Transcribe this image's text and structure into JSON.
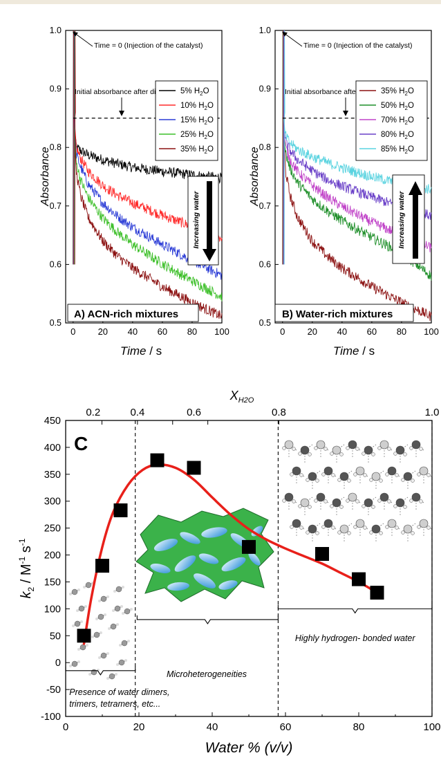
{
  "chart_data": [
    {
      "type": "line",
      "panel_label": "A) ACN-rich mixtures",
      "xlabel_italic": "Time",
      "xlabel_unit": " / s",
      "ylabel": "Absorbance",
      "xlim": [
        -5,
        100
      ],
      "ylim": [
        0.5,
        1.0
      ],
      "x_ticks": [
        0,
        20,
        40,
        60,
        80,
        100
      ],
      "x_tick_labels": [
        "0",
        "20",
        "40",
        "60",
        "80",
        "100"
      ],
      "y_ticks": [
        0.5,
        0.6,
        0.7,
        0.8,
        0.9,
        1.0
      ],
      "y_tick_labels": [
        "0.5",
        "0.6",
        "0.7",
        "0.8",
        "0.9",
        "1.0"
      ],
      "annotation_time0": "Time = 0 (Injection of the catalyst)",
      "annotation_dilution": "Initial absorbance after dilution",
      "dilution_level": 0.85,
      "arrow_text": "Increasing water",
      "arrow_direction": "down",
      "legend_position": "top-right",
      "series": [
        {
          "name": "5% H2O",
          "label_parts": [
            "5% H",
            "2",
            "O"
          ],
          "color": "#000000",
          "points": [
            [
              2,
              0.8
            ],
            [
              5,
              0.795
            ],
            [
              10,
              0.787
            ],
            [
              20,
              0.779
            ],
            [
              30,
              0.772
            ],
            [
              40,
              0.766
            ],
            [
              60,
              0.759
            ],
            [
              80,
              0.753
            ],
            [
              100,
              0.748
            ]
          ]
        },
        {
          "name": "10% H2O",
          "label_parts": [
            "10% H",
            "2",
            "O"
          ],
          "color": "#ff2a2a",
          "points": [
            [
              2,
              0.8
            ],
            [
              5,
              0.782
            ],
            [
              10,
              0.76
            ],
            [
              20,
              0.735
            ],
            [
              30,
              0.718
            ],
            [
              40,
              0.705
            ],
            [
              60,
              0.684
            ],
            [
              80,
              0.665
            ],
            [
              100,
              0.645
            ]
          ]
        },
        {
          "name": "15% H2O",
          "label_parts": [
            "15% H",
            "2",
            "O"
          ],
          "color": "#2a3bd6",
          "points": [
            [
              2,
              0.79
            ],
            [
              5,
              0.767
            ],
            [
              10,
              0.738
            ],
            [
              20,
              0.705
            ],
            [
              30,
              0.682
            ],
            [
              40,
              0.664
            ],
            [
              60,
              0.634
            ],
            [
              80,
              0.607
            ],
            [
              100,
              0.581
            ]
          ]
        },
        {
          "name": "25% H2O",
          "label_parts": [
            "25% H",
            "2",
            "O"
          ],
          "color": "#3cbf28",
          "points": [
            [
              2,
              0.775
            ],
            [
              5,
              0.745
            ],
            [
              10,
              0.715
            ],
            [
              20,
              0.679
            ],
            [
              30,
              0.655
            ],
            [
              40,
              0.634
            ],
            [
              60,
              0.601
            ],
            [
              80,
              0.572
            ],
            [
              100,
              0.545
            ]
          ]
        },
        {
          "name": "35% H2O",
          "label_parts": [
            "35% H",
            "2",
            "O"
          ],
          "color": "#8b1010",
          "points": [
            [
              2,
              0.76
            ],
            [
              5,
              0.718
            ],
            [
              10,
              0.681
            ],
            [
              20,
              0.64
            ],
            [
              30,
              0.614
            ],
            [
              40,
              0.594
            ],
            [
              60,
              0.562
            ],
            [
              80,
              0.535
            ],
            [
              100,
              0.511
            ]
          ]
        }
      ]
    },
    {
      "type": "line",
      "panel_label": "B) Water-rich mixtures",
      "xlabel_italic": "Time",
      "xlabel_unit": " / s",
      "ylabel": "Absorbance",
      "xlim": [
        -5,
        100
      ],
      "ylim": [
        0.5,
        1.0
      ],
      "x_ticks": [
        0,
        20,
        40,
        60,
        80,
        100
      ],
      "x_tick_labels": [
        "0",
        "20",
        "40",
        "60",
        "80",
        "100"
      ],
      "y_ticks": [
        0.5,
        0.6,
        0.7,
        0.8,
        0.9,
        1.0
      ],
      "y_tick_labels": [
        "0.5",
        "0.6",
        "0.7",
        "0.8",
        "0.9",
        "1.0"
      ],
      "annotation_time0": "Time = 0 (Injection of the catalyst)",
      "annotation_dilution": "Initial absorbance after dilution",
      "dilution_level": 0.85,
      "arrow_text": "Increasing water",
      "arrow_direction": "up",
      "legend_position": "top-right",
      "series": [
        {
          "name": "35% H2O",
          "label_parts": [
            "35% H",
            "2",
            "O"
          ],
          "color": "#8b1010",
          "points": [
            [
              2,
              0.76
            ],
            [
              5,
              0.718
            ],
            [
              10,
              0.681
            ],
            [
              20,
              0.64
            ],
            [
              30,
              0.614
            ],
            [
              40,
              0.594
            ],
            [
              60,
              0.562
            ],
            [
              80,
              0.535
            ],
            [
              100,
              0.511
            ]
          ]
        },
        {
          "name": "50% H2O",
          "label_parts": [
            "50% H",
            "2",
            "O"
          ],
          "color": "#1f8f2a",
          "points": [
            [
              2,
              0.79
            ],
            [
              5,
              0.765
            ],
            [
              10,
              0.74
            ],
            [
              20,
              0.712
            ],
            [
              30,
              0.692
            ],
            [
              40,
              0.675
            ],
            [
              60,
              0.646
            ],
            [
              80,
              0.62
            ],
            [
              100,
              0.58
            ]
          ]
        },
        {
          "name": "70% H2O",
          "label_parts": [
            "70% H",
            "2",
            "O"
          ],
          "color": "#c043c8",
          "points": [
            [
              2,
              0.8
            ],
            [
              5,
              0.78
            ],
            [
              10,
              0.759
            ],
            [
              20,
              0.735
            ],
            [
              30,
              0.715
            ],
            [
              40,
              0.699
            ],
            [
              60,
              0.672
            ],
            [
              80,
              0.65
            ],
            [
              100,
              0.628
            ]
          ]
        },
        {
          "name": "80% H2O",
          "label_parts": [
            "80% H",
            "2",
            "O"
          ],
          "color": "#6a40c8",
          "points": [
            [
              2,
              0.81
            ],
            [
              5,
              0.795
            ],
            [
              10,
              0.779
            ],
            [
              20,
              0.76
            ],
            [
              30,
              0.745
            ],
            [
              40,
              0.734
            ],
            [
              60,
              0.715
            ],
            [
              80,
              0.698
            ],
            [
              100,
              0.683
            ]
          ]
        },
        {
          "name": "85% H2O",
          "label_parts": [
            "85% H",
            "2",
            "O"
          ],
          "color": "#5ad3e0",
          "points": [
            [
              2,
              0.82
            ],
            [
              5,
              0.808
            ],
            [
              10,
              0.797
            ],
            [
              20,
              0.784
            ],
            [
              30,
              0.774
            ],
            [
              40,
              0.765
            ],
            [
              60,
              0.75
            ],
            [
              80,
              0.738
            ],
            [
              100,
              0.728
            ]
          ]
        }
      ]
    },
    {
      "type": "scatter",
      "panel_label": "C",
      "xlabel": "Water % (v/v)",
      "ylabel_parts": [
        "k",
        "2",
        " / M",
        "-1",
        " s",
        "-1"
      ],
      "top_axis_label_main": "X",
      "top_axis_label_sub": "H2O",
      "xlim": [
        0,
        100
      ],
      "ylim": [
        -100,
        450
      ],
      "x_ticks": [
        0,
        20,
        40,
        60,
        80,
        100
      ],
      "x_tick_labels": [
        "0",
        "20",
        "40",
        "60",
        "80",
        "100"
      ],
      "y_ticks": [
        -100,
        -50,
        0,
        50,
        100,
        150,
        200,
        250,
        300,
        350,
        400,
        450
      ],
      "y_tick_labels": [
        "-100",
        "-50",
        "0",
        "50",
        "100",
        "150",
        "200",
        "250",
        "300",
        "350",
        "400",
        "450"
      ],
      "top_ticks_at_water_pct": [
        9.9,
        19.6,
        29.2,
        38.8,
        58.2,
        100
      ],
      "top_tick_labels": [
        "0.2",
        "0.4",
        "0.6",
        "0.8",
        "1.0"
      ],
      "top_label_water_pct": [
        7.5,
        19.6,
        35.0,
        58.2,
        100
      ],
      "points": [
        [
          5,
          50
        ],
        [
          10,
          180
        ],
        [
          15,
          283
        ],
        [
          25,
          376
        ],
        [
          35,
          362
        ],
        [
          50,
          215
        ],
        [
          70,
          202
        ],
        [
          80,
          155
        ],
        [
          85,
          130
        ]
      ],
      "fit_curve": [
        [
          5,
          35
        ],
        [
          7,
          120
        ],
        [
          10,
          215
        ],
        [
          13,
          280
        ],
        [
          17,
          330
        ],
        [
          21,
          358
        ],
        [
          25,
          368
        ],
        [
          30,
          362
        ],
        [
          35,
          340
        ],
        [
          40,
          307
        ],
        [
          45,
          275
        ],
        [
          50,
          248
        ],
        [
          55,
          228
        ],
        [
          60,
          212
        ],
        [
          65,
          198
        ],
        [
          70,
          184
        ],
        [
          75,
          167
        ],
        [
          80,
          150
        ],
        [
          85,
          130
        ]
      ],
      "fit_color": "#e8201a",
      "vertical_dividers": [
        19,
        58,
        100
      ],
      "region_labels": [
        {
          "text": "Presence of water dimers,",
          "x": 1,
          "y": -60
        },
        {
          "text": "trimers, tetramers, etc...",
          "x": 1,
          "y": -82
        },
        {
          "text": "Microheterogeneities",
          "x": 38.5,
          "y": -27
        },
        {
          "text": "Highly hydrogen- bonded water",
          "x": 79,
          "y": 40
        }
      ],
      "region_brackets": [
        {
          "x0": 0,
          "x1": 19,
          "y": -15
        },
        {
          "x0": 19.5,
          "x1": 58,
          "y": 80
        },
        {
          "x0": 58,
          "x1": 100,
          "y": 100
        }
      ]
    }
  ]
}
